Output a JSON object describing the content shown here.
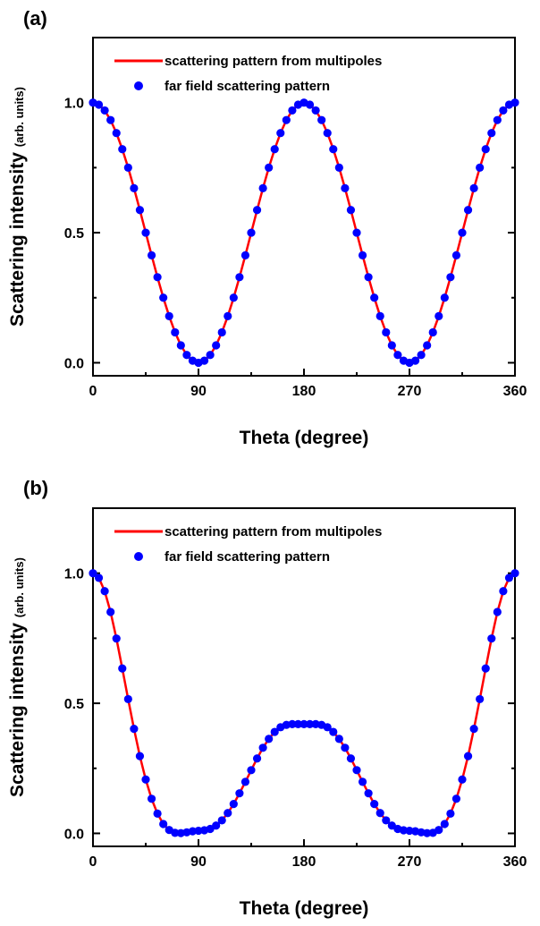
{
  "chart_data": [
    {
      "panel": "(a)",
      "type": "line",
      "xlabel": "Theta (degree)",
      "ylabel": "Scattering intensity",
      "ylabel_units": "(arb. units)",
      "xlim": [
        0,
        360
      ],
      "ylim": [
        -0.05,
        1.25
      ],
      "xticks": [
        "0",
        "90",
        "180",
        "270",
        "360"
      ],
      "yticks": [
        "0.0",
        "0.5",
        "1.0"
      ],
      "legend_position": "top",
      "series": [
        {
          "name": "scattering pattern from multipoles",
          "style": "line",
          "color": "#ff0000",
          "function": "cos^2",
          "x": [
            0,
            5,
            10,
            15,
            20,
            25,
            30,
            35,
            40,
            45,
            50,
            55,
            60,
            65,
            70,
            75,
            80,
            85,
            90,
            95,
            100,
            105,
            110,
            115,
            120,
            125,
            130,
            135,
            140,
            145,
            150,
            155,
            160,
            165,
            170,
            175,
            180,
            185,
            190,
            195,
            200,
            205,
            210,
            215,
            220,
            225,
            230,
            235,
            240,
            245,
            250,
            255,
            260,
            265,
            270,
            275,
            280,
            285,
            290,
            295,
            300,
            305,
            310,
            315,
            320,
            325,
            330,
            335,
            340,
            345,
            350,
            355,
            360
          ],
          "y": [
            1.0,
            0.992,
            0.97,
            0.933,
            0.883,
            0.821,
            0.75,
            0.671,
            0.587,
            0.5,
            0.413,
            0.329,
            0.25,
            0.179,
            0.117,
            0.067,
            0.03,
            0.008,
            0.0,
            0.008,
            0.03,
            0.067,
            0.117,
            0.179,
            0.25,
            0.329,
            0.413,
            0.5,
            0.587,
            0.671,
            0.75,
            0.821,
            0.883,
            0.933,
            0.97,
            0.992,
            1.0,
            0.992,
            0.97,
            0.933,
            0.883,
            0.821,
            0.75,
            0.671,
            0.587,
            0.5,
            0.413,
            0.329,
            0.25,
            0.179,
            0.117,
            0.067,
            0.03,
            0.008,
            0.0,
            0.008,
            0.03,
            0.067,
            0.117,
            0.179,
            0.25,
            0.329,
            0.413,
            0.5,
            0.587,
            0.671,
            0.75,
            0.821,
            0.883,
            0.933,
            0.97,
            0.992,
            1.0
          ]
        },
        {
          "name": "far field scattering pattern",
          "style": "scatter",
          "color": "#0000ff",
          "x": [
            0,
            5,
            10,
            15,
            20,
            25,
            30,
            35,
            40,
            45,
            50,
            55,
            60,
            65,
            70,
            75,
            80,
            85,
            90,
            95,
            100,
            105,
            110,
            115,
            120,
            125,
            130,
            135,
            140,
            145,
            150,
            155,
            160,
            165,
            170,
            175,
            180,
            185,
            190,
            195,
            200,
            205,
            210,
            215,
            220,
            225,
            230,
            235,
            240,
            245,
            250,
            255,
            260,
            265,
            270,
            275,
            280,
            285,
            290,
            295,
            300,
            305,
            310,
            315,
            320,
            325,
            330,
            335,
            340,
            345,
            350,
            355,
            360
          ],
          "y": [
            1.0,
            0.992,
            0.97,
            0.933,
            0.883,
            0.821,
            0.75,
            0.671,
            0.587,
            0.5,
            0.413,
            0.329,
            0.25,
            0.179,
            0.117,
            0.067,
            0.03,
            0.008,
            0.0,
            0.008,
            0.03,
            0.067,
            0.117,
            0.179,
            0.25,
            0.329,
            0.413,
            0.5,
            0.587,
            0.671,
            0.75,
            0.821,
            0.883,
            0.933,
            0.97,
            0.992,
            1.0,
            0.992,
            0.97,
            0.933,
            0.883,
            0.821,
            0.75,
            0.671,
            0.587,
            0.5,
            0.413,
            0.329,
            0.25,
            0.179,
            0.117,
            0.067,
            0.03,
            0.008,
            0.0,
            0.008,
            0.03,
            0.067,
            0.117,
            0.179,
            0.25,
            0.329,
            0.413,
            0.5,
            0.587,
            0.671,
            0.75,
            0.821,
            0.883,
            0.933,
            0.97,
            0.992,
            1.0
          ]
        }
      ]
    },
    {
      "panel": "(b)",
      "type": "line",
      "xlabel": "Theta (degree)",
      "ylabel": "Scattering intensity",
      "ylabel_units": "(arb. units)",
      "xlim": [
        0,
        360
      ],
      "ylim": [
        -0.05,
        1.25
      ],
      "xticks": [
        "0",
        "90",
        "180",
        "270",
        "360"
      ],
      "yticks": [
        "0.0",
        "0.5",
        "1.0"
      ],
      "legend_position": "top",
      "series": [
        {
          "name": "scattering pattern from multipoles",
          "style": "line",
          "color": "#ff0000",
          "x": [
            0,
            5,
            10,
            15,
            20,
            25,
            30,
            35,
            40,
            45,
            50,
            55,
            60,
            65,
            70,
            75,
            80,
            85,
            90,
            95,
            100,
            105,
            110,
            115,
            120,
            125,
            130,
            135,
            140,
            145,
            150,
            155,
            160,
            165,
            170,
            175,
            180,
            185,
            190,
            195,
            200,
            205,
            210,
            215,
            220,
            225,
            230,
            235,
            240,
            245,
            250,
            255,
            260,
            265,
            270,
            275,
            280,
            285,
            290,
            295,
            300,
            305,
            310,
            315,
            320,
            325,
            330,
            335,
            340,
            345,
            350,
            355,
            360
          ],
          "y": [
            1.0,
            0.982,
            0.931,
            0.851,
            0.749,
            0.634,
            0.516,
            0.402,
            0.297,
            0.207,
            0.133,
            0.076,
            0.036,
            0.013,
            0.002,
            0.001,
            0.004,
            0.008,
            0.01,
            0.012,
            0.017,
            0.03,
            0.05,
            0.078,
            0.113,
            0.154,
            0.198,
            0.243,
            0.288,
            0.329,
            0.363,
            0.39,
            0.408,
            0.417,
            0.42,
            0.42,
            0.42,
            0.42,
            0.42,
            0.417,
            0.408,
            0.39,
            0.363,
            0.329,
            0.288,
            0.243,
            0.198,
            0.154,
            0.113,
            0.078,
            0.05,
            0.03,
            0.017,
            0.012,
            0.01,
            0.008,
            0.004,
            0.001,
            0.002,
            0.013,
            0.036,
            0.076,
            0.133,
            0.207,
            0.297,
            0.402,
            0.516,
            0.634,
            0.749,
            0.851,
            0.931,
            0.982,
            1.0
          ]
        },
        {
          "name": "far field scattering pattern",
          "style": "scatter",
          "color": "#0000ff",
          "x": [
            0,
            5,
            10,
            15,
            20,
            25,
            30,
            35,
            40,
            45,
            50,
            55,
            60,
            65,
            70,
            75,
            80,
            85,
            90,
            95,
            100,
            105,
            110,
            115,
            120,
            125,
            130,
            135,
            140,
            145,
            150,
            155,
            160,
            165,
            170,
            175,
            180,
            185,
            190,
            195,
            200,
            205,
            210,
            215,
            220,
            225,
            230,
            235,
            240,
            245,
            250,
            255,
            260,
            265,
            270,
            275,
            280,
            285,
            290,
            295,
            300,
            305,
            310,
            315,
            320,
            325,
            330,
            335,
            340,
            345,
            350,
            355,
            360
          ],
          "y": [
            1.0,
            0.982,
            0.931,
            0.851,
            0.749,
            0.634,
            0.516,
            0.402,
            0.297,
            0.207,
            0.133,
            0.076,
            0.036,
            0.013,
            0.002,
            0.001,
            0.004,
            0.008,
            0.01,
            0.012,
            0.017,
            0.03,
            0.05,
            0.078,
            0.113,
            0.154,
            0.198,
            0.243,
            0.288,
            0.329,
            0.363,
            0.39,
            0.408,
            0.417,
            0.42,
            0.42,
            0.42,
            0.42,
            0.42,
            0.417,
            0.408,
            0.39,
            0.363,
            0.329,
            0.288,
            0.243,
            0.198,
            0.154,
            0.113,
            0.078,
            0.05,
            0.03,
            0.017,
            0.012,
            0.01,
            0.008,
            0.004,
            0.001,
            0.002,
            0.013,
            0.036,
            0.076,
            0.133,
            0.207,
            0.297,
            0.402,
            0.516,
            0.634,
            0.749,
            0.851,
            0.931,
            0.982,
            1.0
          ]
        }
      ]
    }
  ]
}
